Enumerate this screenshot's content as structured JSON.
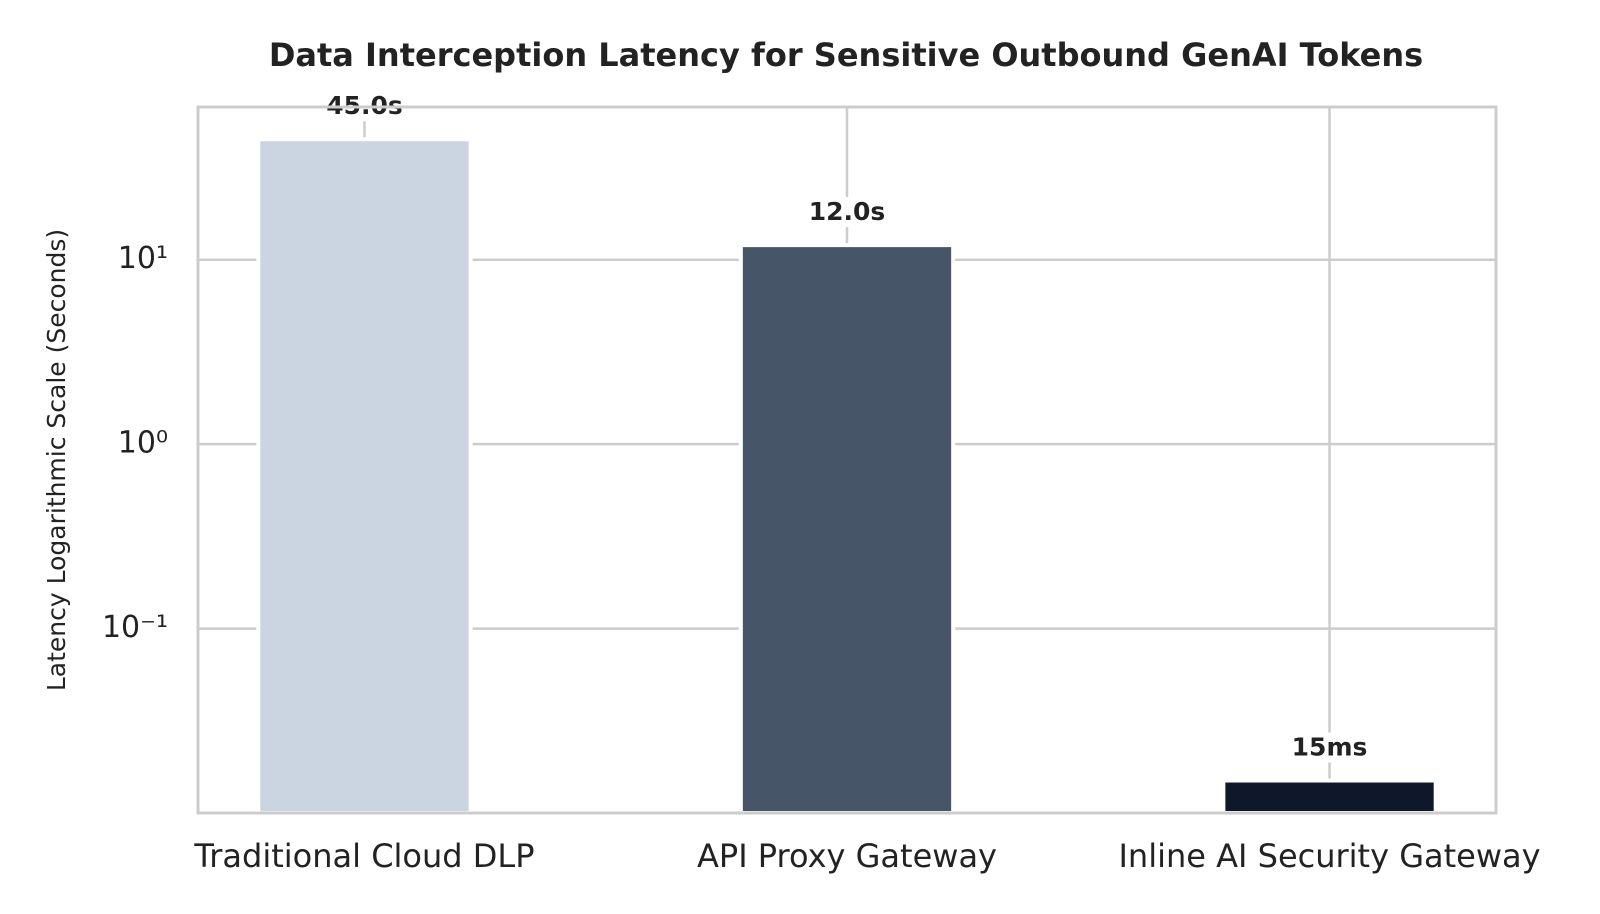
{
  "chart_data": {
    "type": "bar",
    "title": "Data Interception Latency for Sensitive Outbound GenAI Tokens",
    "y_label": "Latency Logarithmic Scale (Seconds)",
    "categories": [
      "Traditional Cloud DLP",
      "API Proxy Gateway",
      "Inline AI Security Gateway"
    ],
    "values": [
      45.0,
      12.0,
      0.015
    ],
    "value_labels": [
      "45.0s",
      "12.0s",
      "15ms"
    ],
    "colors": [
      "#cbd5e1",
      "#475569",
      "#0f172a"
    ],
    "y_scale": "log",
    "ylim": [
      0.01,
      67.3
    ],
    "yticks": [
      {
        "value": 10,
        "label": "10¹"
      },
      {
        "value": 1,
        "label": "10⁰"
      },
      {
        "value": 0.1,
        "label": "10⁻¹"
      }
    ],
    "grid": true
  }
}
